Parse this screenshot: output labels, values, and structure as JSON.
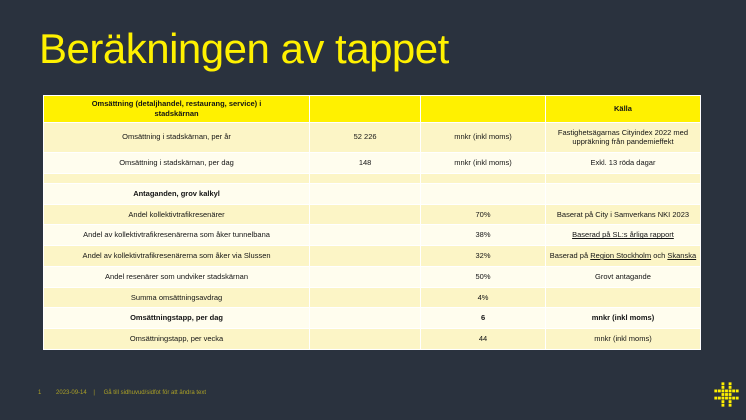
{
  "slide": {
    "title": "Beräkningen av tappet"
  },
  "colors": {
    "background": "#2A323E",
    "accent_yellow": "#FFF100",
    "row_light_yellow": "#FCF5C6",
    "row_cream": "#FFFDEE",
    "gridline": "#FFFFFF",
    "text": "#141414",
    "footer_text": "#ABA026"
  },
  "table": {
    "header": [
      "Omsättning (detaljhandel, restaurang, service) i stadskärnan",
      "",
      "",
      "Källa"
    ],
    "rows": [
      {
        "label": "Omsättning i stadskärnan, per år",
        "col2": "52 226",
        "col3": "mnkr (inkl moms)",
        "bold": false,
        "source": [
          {
            "text": "Fastighetsägarnas Cityindex 2022 med uppräkning från pandemieffekt",
            "underline": false
          }
        ]
      },
      {
        "label": "Omsättning i stadskärnan, per dag",
        "col2": "148",
        "col3": "mnkr (inkl moms)",
        "bold": false,
        "source": [
          {
            "text": "Exkl. 13 röda dagar",
            "underline": false
          }
        ]
      },
      {
        "label": "",
        "col2": "",
        "col3": "",
        "bold": false,
        "source": []
      },
      {
        "label": "Antaganden, grov kalkyl",
        "col2": "",
        "col3": "",
        "bold": true,
        "source": []
      },
      {
        "label": "Andel kollektivtrafikresenärer",
        "col2": "",
        "col3": "70%",
        "bold": false,
        "source": [
          {
            "text": "Baserat på City i Samverkans NKI 2023",
            "underline": false
          }
        ]
      },
      {
        "label": "Andel av kollektivtrafikresenärerna som åker tunnelbana",
        "col2": "",
        "col3": "38%",
        "bold": false,
        "source": [
          {
            "text": "Baserad på SL:s årliga rapport",
            "underline": true
          }
        ]
      },
      {
        "label": "Andel av kollektivtrafikresenärerna som åker via Slussen",
        "col2": "",
        "col3": "32%",
        "bold": false,
        "source": [
          {
            "text": "Baserad på ",
            "underline": false
          },
          {
            "text": "Region Stockholm",
            "underline": true
          },
          {
            "text": " och ",
            "underline": false
          },
          {
            "text": "Skanska",
            "underline": true
          }
        ]
      },
      {
        "label": "Andel resenärer som undviker stadskärnan",
        "col2": "",
        "col3": "50%",
        "bold": false,
        "source": [
          {
            "text": "Grovt antagande",
            "underline": false
          }
        ]
      },
      {
        "label": "Summa omsättningsavdrag",
        "col2": "",
        "col3": "4%",
        "bold": false,
        "source": []
      },
      {
        "label": "Omsättningstapp, per dag",
        "col2": "",
        "col3": "6",
        "bold": true,
        "source": [
          {
            "text": "mnkr (inkl moms)",
            "underline": false
          }
        ]
      },
      {
        "label": "Omsättningstapp, per vecka",
        "col2": "",
        "col3": "44",
        "bold": false,
        "source": [
          {
            "text": "mnkr (inkl moms)",
            "underline": false
          }
        ]
      }
    ]
  },
  "footer": {
    "page_number": "1",
    "date": "2023-09-14",
    "separator": "|",
    "note": "Gå till sidhuvud/sidfot för att ändra text"
  },
  "icons": {
    "logo": "hash-dots-logo"
  }
}
